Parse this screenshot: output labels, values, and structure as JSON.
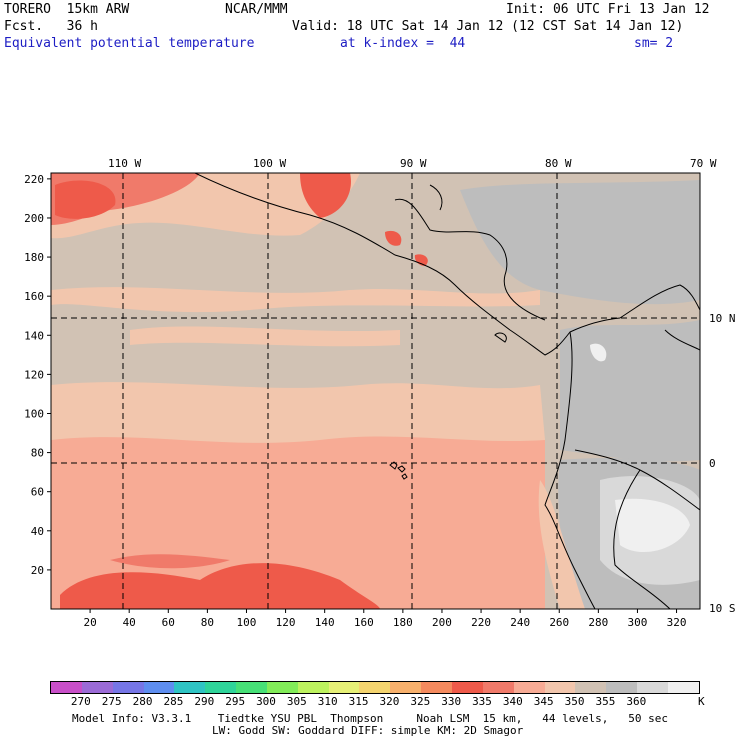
{
  "header": {
    "line1_left": "TORERO  15km ARW",
    "line1_center": "NCAR/MMM",
    "line1_right": "Init: 06 UTC Fri 13 Jan 12",
    "line2_left": "Fcst.   36 h",
    "line2_right": "Valid: 18 UTC Sat 14 Jan 12 (12 CST Sat 14 Jan 12)",
    "line3_field": "Equivalent potential temperature",
    "line3_level": "at k-index =  44",
    "line3_smooth": "sm= 2"
  },
  "map": {
    "top_lon_labels": [
      "110 W",
      "100 W",
      "90 W",
      "80 W",
      "70 W"
    ],
    "right_lat_labels": [
      "10 N",
      "0",
      "10 S"
    ],
    "y_ticks": [
      "220",
      "200",
      "180",
      "160",
      "140",
      "120",
      "100",
      "80",
      "60",
      "40",
      "20"
    ],
    "x_ticks": [
      "20",
      "40",
      "60",
      "80",
      "100",
      "120",
      "140",
      "160",
      "180",
      "200",
      "220",
      "240",
      "260",
      "280",
      "300",
      "320"
    ]
  },
  "colorbar": {
    "labels": [
      "270",
      "275",
      "280",
      "285",
      "290",
      "295",
      "300",
      "305",
      "310",
      "315",
      "320",
      "325",
      "330",
      "335",
      "340",
      "345",
      "350",
      "355",
      "360"
    ],
    "unit": "K",
    "colors": [
      "#c84fc8",
      "#9b6bd6",
      "#7676e6",
      "#5e8ef0",
      "#2fc4c4",
      "#2fd49a",
      "#47e077",
      "#82ec59",
      "#bdf25f",
      "#e6f077",
      "#f4d46f",
      "#f7b06c",
      "#f48a5e",
      "#ee5a4a",
      "#f07a6a",
      "#f7ab95",
      "#f2c6ad",
      "#d1c2b4",
      "#bdbdbd",
      "#d9d9d9",
      "#f0f0f0"
    ]
  },
  "footer": {
    "line1": "Model Info: V3.3.1    Tiedtke YSU PBL  Thompson     Noah LSM  15 km,   44 levels,   50 sec",
    "line2": "LW: Godd SW: Goddard DIFF: simple KM: 2D Smagor"
  }
}
